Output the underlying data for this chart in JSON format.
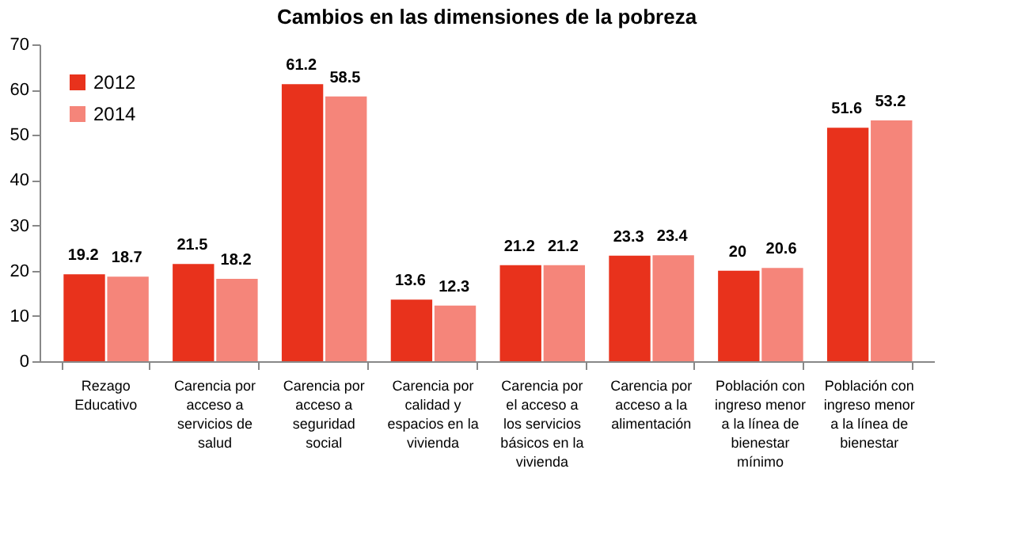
{
  "chart_data": {
    "type": "bar",
    "title": "Cambios en las dimensiones de la pobreza",
    "categories": [
      "Rezago Educativo",
      "Carencia por acceso a servicios de salud",
      "Carencia por acceso a seguridad social",
      "Carencia por calidad y espacios en la vivienda",
      "Carencia por el acceso a los servicios básicos en la vivienda",
      "Carencia por acceso a la alimentación",
      "Población con ingreso menor a la línea de bienestar mínimo",
      "Población con ingreso menor a la línea de bienestar"
    ],
    "series": [
      {
        "name": "2012",
        "color": "#e8321c",
        "values": [
          19.2,
          21.5,
          61.2,
          13.6,
          21.2,
          23.3,
          20,
          51.6
        ]
      },
      {
        "name": "2014",
        "color": "#f5857a",
        "values": [
          18.7,
          18.2,
          58.5,
          12.3,
          21.2,
          23.4,
          20.6,
          53.2
        ]
      }
    ],
    "ylim": [
      0,
      70
    ],
    "yticks": [
      0,
      10,
      20,
      30,
      40,
      50,
      60,
      70
    ],
    "grid": false,
    "legend": "top left",
    "data_labels": true
  }
}
